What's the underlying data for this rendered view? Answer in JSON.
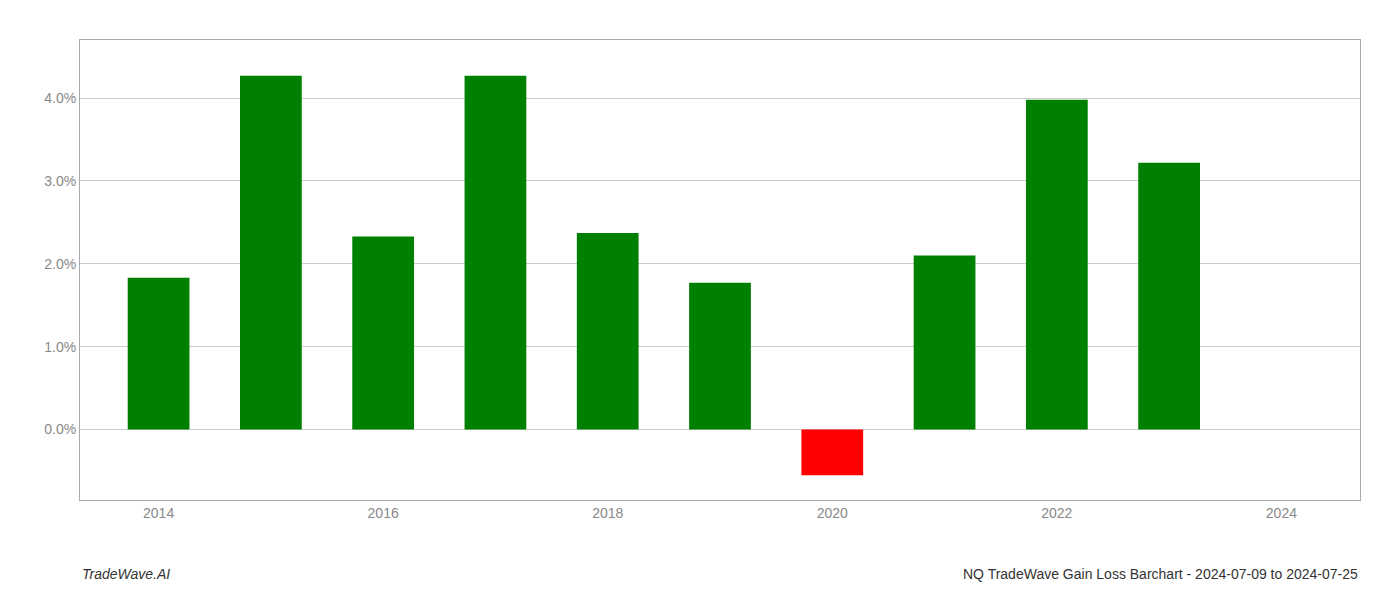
{
  "chart_data": {
    "type": "bar",
    "x": [
      2014,
      2015,
      2016,
      2017,
      2018,
      2019,
      2020,
      2021,
      2022,
      2023
    ],
    "values": [
      0.0183,
      0.0427,
      0.0233,
      0.0427,
      0.0237,
      0.0177,
      -0.0055,
      0.021,
      0.0398,
      0.0322
    ],
    "colors": [
      "#008000",
      "#008000",
      "#008000",
      "#008000",
      "#008000",
      "#008000",
      "#ff0000",
      "#008000",
      "#008000",
      "#008000"
    ],
    "xlim": [
      2013.3,
      2024.7
    ],
    "xticks": [
      2014,
      2016,
      2018,
      2020,
      2022,
      2024
    ],
    "ylim": [
      -0.0085,
      0.047
    ],
    "yticks": [
      {
        "value": 0.0,
        "label": "0.0%"
      },
      {
        "value": 0.01,
        "label": "1.0%"
      },
      {
        "value": 0.02,
        "label": "2.0%"
      },
      {
        "value": 0.03,
        "label": "3.0%"
      },
      {
        "value": 0.04,
        "label": "4.0%"
      }
    ],
    "grid": true,
    "annotations": [
      "TradeWave.AI",
      "NQ TradeWave Gain Loss Barchart - 2024-07-09 to 2024-07-25"
    ]
  }
}
